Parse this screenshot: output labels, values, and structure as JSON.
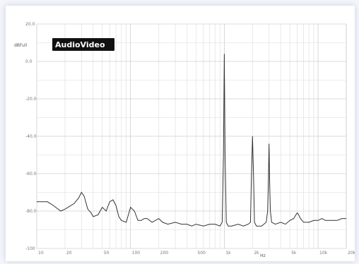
{
  "chart_data": {
    "type": "line",
    "ylabel": "dBFull",
    "xlabel": "Hz",
    "badge": "AudioVideo",
    "xscale": "log",
    "xlim": [
      10,
      20000
    ],
    "ylim": [
      -100,
      20
    ],
    "grid": true,
    "y_ticks": [
      "20.0",
      "0.0",
      "-20.0",
      "-40.0",
      "-60.0",
      "-80.0",
      "-100"
    ],
    "y_tick_values": [
      20,
      0,
      -20,
      -40,
      -60,
      -80,
      -100
    ],
    "x_ticks": [
      "10",
      "20",
      "50",
      "100",
      "200",
      "500",
      "1k",
      "2k",
      "5k",
      "10k",
      "20k"
    ],
    "x_tick_values": [
      10,
      20,
      50,
      100,
      200,
      500,
      1000,
      2000,
      5000,
      10000,
      20000
    ],
    "color": "#333333",
    "series": [
      {
        "x": [
          10,
          13,
          15,
          18,
          20,
          25,
          28,
          30,
          32,
          35,
          38,
          40,
          45,
          50,
          55,
          60,
          65,
          70,
          75,
          80,
          90,
          100,
          110,
          120,
          130,
          140,
          150,
          170,
          200,
          220,
          250,
          300,
          350,
          400,
          450,
          500,
          600,
          700,
          800,
          900,
          950,
          980,
          1000,
          1020,
          1050,
          1100,
          1200,
          1400,
          1600,
          1800,
          1900,
          1950,
          2000,
          2050,
          2100,
          2200,
          2500,
          2800,
          2900,
          2950,
          3000,
          3050,
          3100,
          3200,
          3500,
          4000,
          4500,
          5000,
          5500,
          5800,
          6000,
          6200,
          6500,
          7000,
          8000,
          9000,
          10000,
          11000,
          12000,
          14000,
          16000,
          18000,
          20000
        ],
        "y": [
          -75,
          -75,
          -77,
          -80,
          -79,
          -76,
          -73,
          -70,
          -72,
          -79,
          -81,
          -83,
          -82,
          -78,
          -80,
          -75,
          -74,
          -77,
          -83,
          -85,
          -86,
          -78,
          -80,
          -85,
          -85,
          -84,
          -84,
          -86,
          -84,
          -86,
          -87,
          -86,
          -87,
          -87,
          -88,
          -87,
          -88,
          -87,
          -87,
          -88,
          -86,
          -50,
          4,
          -50,
          -86,
          -88,
          -88,
          -87,
          -88,
          -87,
          -86,
          -60,
          -40,
          -60,
          -86,
          -88,
          -88,
          -86,
          -80,
          -65,
          -44,
          -65,
          -80,
          -86,
          -87,
          -86,
          -87,
          -85,
          -84,
          -82,
          -81,
          -82,
          -84,
          -86,
          -86,
          -85,
          -85,
          -84,
          -85,
          -85,
          -85,
          -84,
          -84
        ]
      }
    ]
  }
}
